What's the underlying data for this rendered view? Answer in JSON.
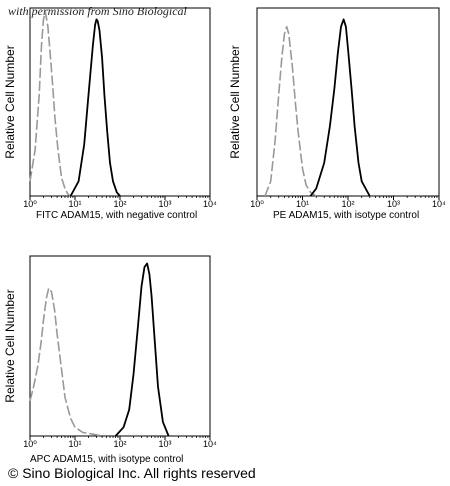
{
  "watermark": "with permission from Sino Biological",
  "copyright": "© Sino Biological Inc. All rights reserved",
  "chart_data": [
    {
      "type": "line",
      "ylabel": "Relative Cell Number",
      "xlabel": "FITC  ADAM15,  with negative control",
      "xscale": "log",
      "xlim": [
        1,
        10000
      ],
      "tick_labels": [
        "10⁰",
        "10¹",
        "10²",
        "10³",
        "10⁴"
      ],
      "grid": false,
      "series": [
        {
          "color": "#999999",
          "dash": "dashed",
          "x": [
            1.0,
            1.3,
            1.6,
            1.8,
            2.0,
            2.2,
            2.5,
            2.8,
            3.2,
            3.6,
            4.2,
            5.0,
            6.0,
            7.0,
            8.0
          ],
          "y": [
            8,
            25,
            55,
            82,
            96,
            100,
            92,
            78,
            60,
            42,
            25,
            10,
            4,
            1,
            0
          ]
        },
        {
          "color": "#000000",
          "dash": "solid",
          "x": [
            8,
            12,
            16,
            20,
            25,
            28,
            30,
            32,
            35,
            40,
            45,
            52,
            60,
            70,
            85,
            100
          ],
          "y": [
            0,
            8,
            28,
            55,
            82,
            93,
            96,
            95,
            90,
            75,
            55,
            35,
            18,
            8,
            2,
            0
          ]
        }
      ]
    },
    {
      "type": "line",
      "ylabel": "Relative Cell Number",
      "xlabel": "PE  ADAM15,  with isotype control",
      "xscale": "log",
      "xlim": [
        1,
        10000
      ],
      "tick_labels": [
        "10⁰",
        "10¹",
        "10²",
        "10³",
        "10⁴"
      ],
      "grid": false,
      "series": [
        {
          "color": "#999999",
          "dash": "dashed",
          "x": [
            1.5,
            2.0,
            2.5,
            3.0,
            3.5,
            4.0,
            4.5,
            5.0,
            6.0,
            7.0,
            8.0,
            10.0,
            12.0,
            15.0,
            20.0
          ],
          "y": [
            0,
            8,
            30,
            55,
            75,
            88,
            92,
            88,
            70,
            50,
            35,
            15,
            6,
            2,
            0
          ]
        },
        {
          "color": "#000000",
          "dash": "solid",
          "x": [
            15,
            20,
            30,
            40,
            50,
            60,
            70,
            80,
            90,
            100,
            120,
            140,
            170,
            200,
            300
          ],
          "y": [
            0,
            4,
            18,
            38,
            58,
            78,
            92,
            96,
            92,
            80,
            58,
            38,
            18,
            8,
            0
          ]
        }
      ]
    },
    {
      "type": "line",
      "ylabel": "Relative Cell Number",
      "xlabel": "APC ADAM15, with isotype control",
      "xscale": "log",
      "xlim": [
        1,
        10000
      ],
      "tick_labels": [
        "10⁰",
        "10¹",
        "10²",
        "10³",
        "10⁴"
      ],
      "grid": false,
      "series": [
        {
          "color": "#999999",
          "dash": "dashed",
          "x": [
            1.0,
            1.2,
            1.5,
            1.8,
            2.0,
            2.3,
            2.6,
            3.0,
            3.5,
            4.0,
            5.0,
            6.0,
            8.0,
            10.0,
            15.0,
            25.0,
            40.0
          ],
          "y": [
            20,
            28,
            40,
            55,
            66,
            78,
            84,
            82,
            72,
            58,
            38,
            22,
            10,
            5,
            2,
            1,
            0
          ]
        },
        {
          "color": "#000000",
          "dash": "solid",
          "x": [
            80,
            120,
            160,
            200,
            250,
            300,
            350,
            400,
            450,
            500,
            600,
            700,
            900,
            1200
          ],
          "y": [
            0,
            5,
            15,
            35,
            62,
            85,
            96,
            98,
            92,
            80,
            52,
            28,
            8,
            0
          ]
        }
      ]
    }
  ]
}
